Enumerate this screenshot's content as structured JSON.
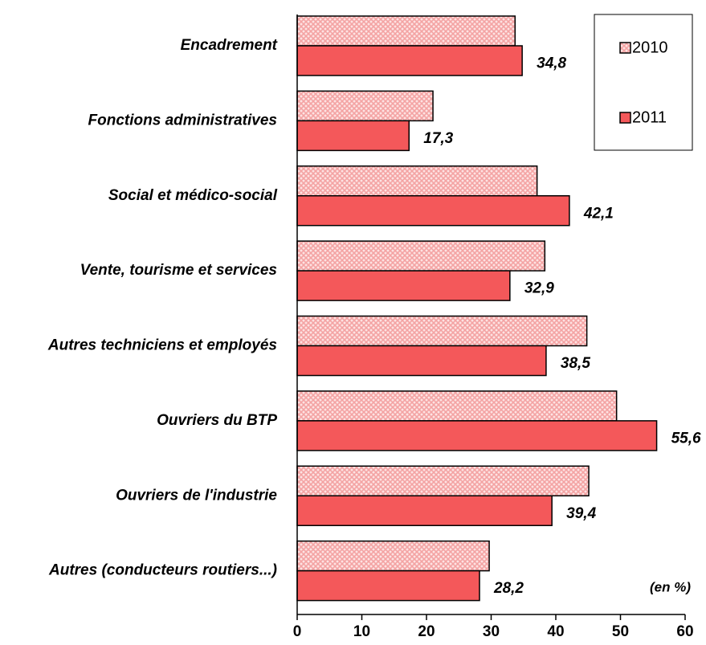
{
  "chart_data": {
    "type": "bar",
    "orientation": "horizontal",
    "categories": [
      "Encadrement",
      "Fonctions administratives",
      "Social et médico-social",
      "Vente, tourisme et services",
      "Autres techniciens et employés",
      "Ouvriers du BTP",
      "Ouvriers de l'industrie",
      "Autres (conducteurs routiers...)"
    ],
    "series": [
      {
        "name": "2010",
        "color": "#f4a3a3",
        "pattern": "crosshatch",
        "values": [
          33.7,
          21.0,
          37.1,
          38.3,
          44.8,
          49.4,
          45.1,
          29.7
        ]
      },
      {
        "name": "2011",
        "color": "#f4585a",
        "values": [
          34.8,
          17.3,
          42.1,
          32.9,
          38.5,
          55.6,
          39.4,
          28.2
        ],
        "value_labels": [
          "34,8",
          "17,3",
          "42,1",
          "32,9",
          "38,5",
          "55,6",
          "39,4",
          "28,2"
        ]
      }
    ],
    "xlim": [
      0,
      60
    ],
    "xticks": [
      0,
      10,
      20,
      30,
      40,
      50,
      60
    ],
    "annotation": "(en %)",
    "legend": "top-right"
  }
}
